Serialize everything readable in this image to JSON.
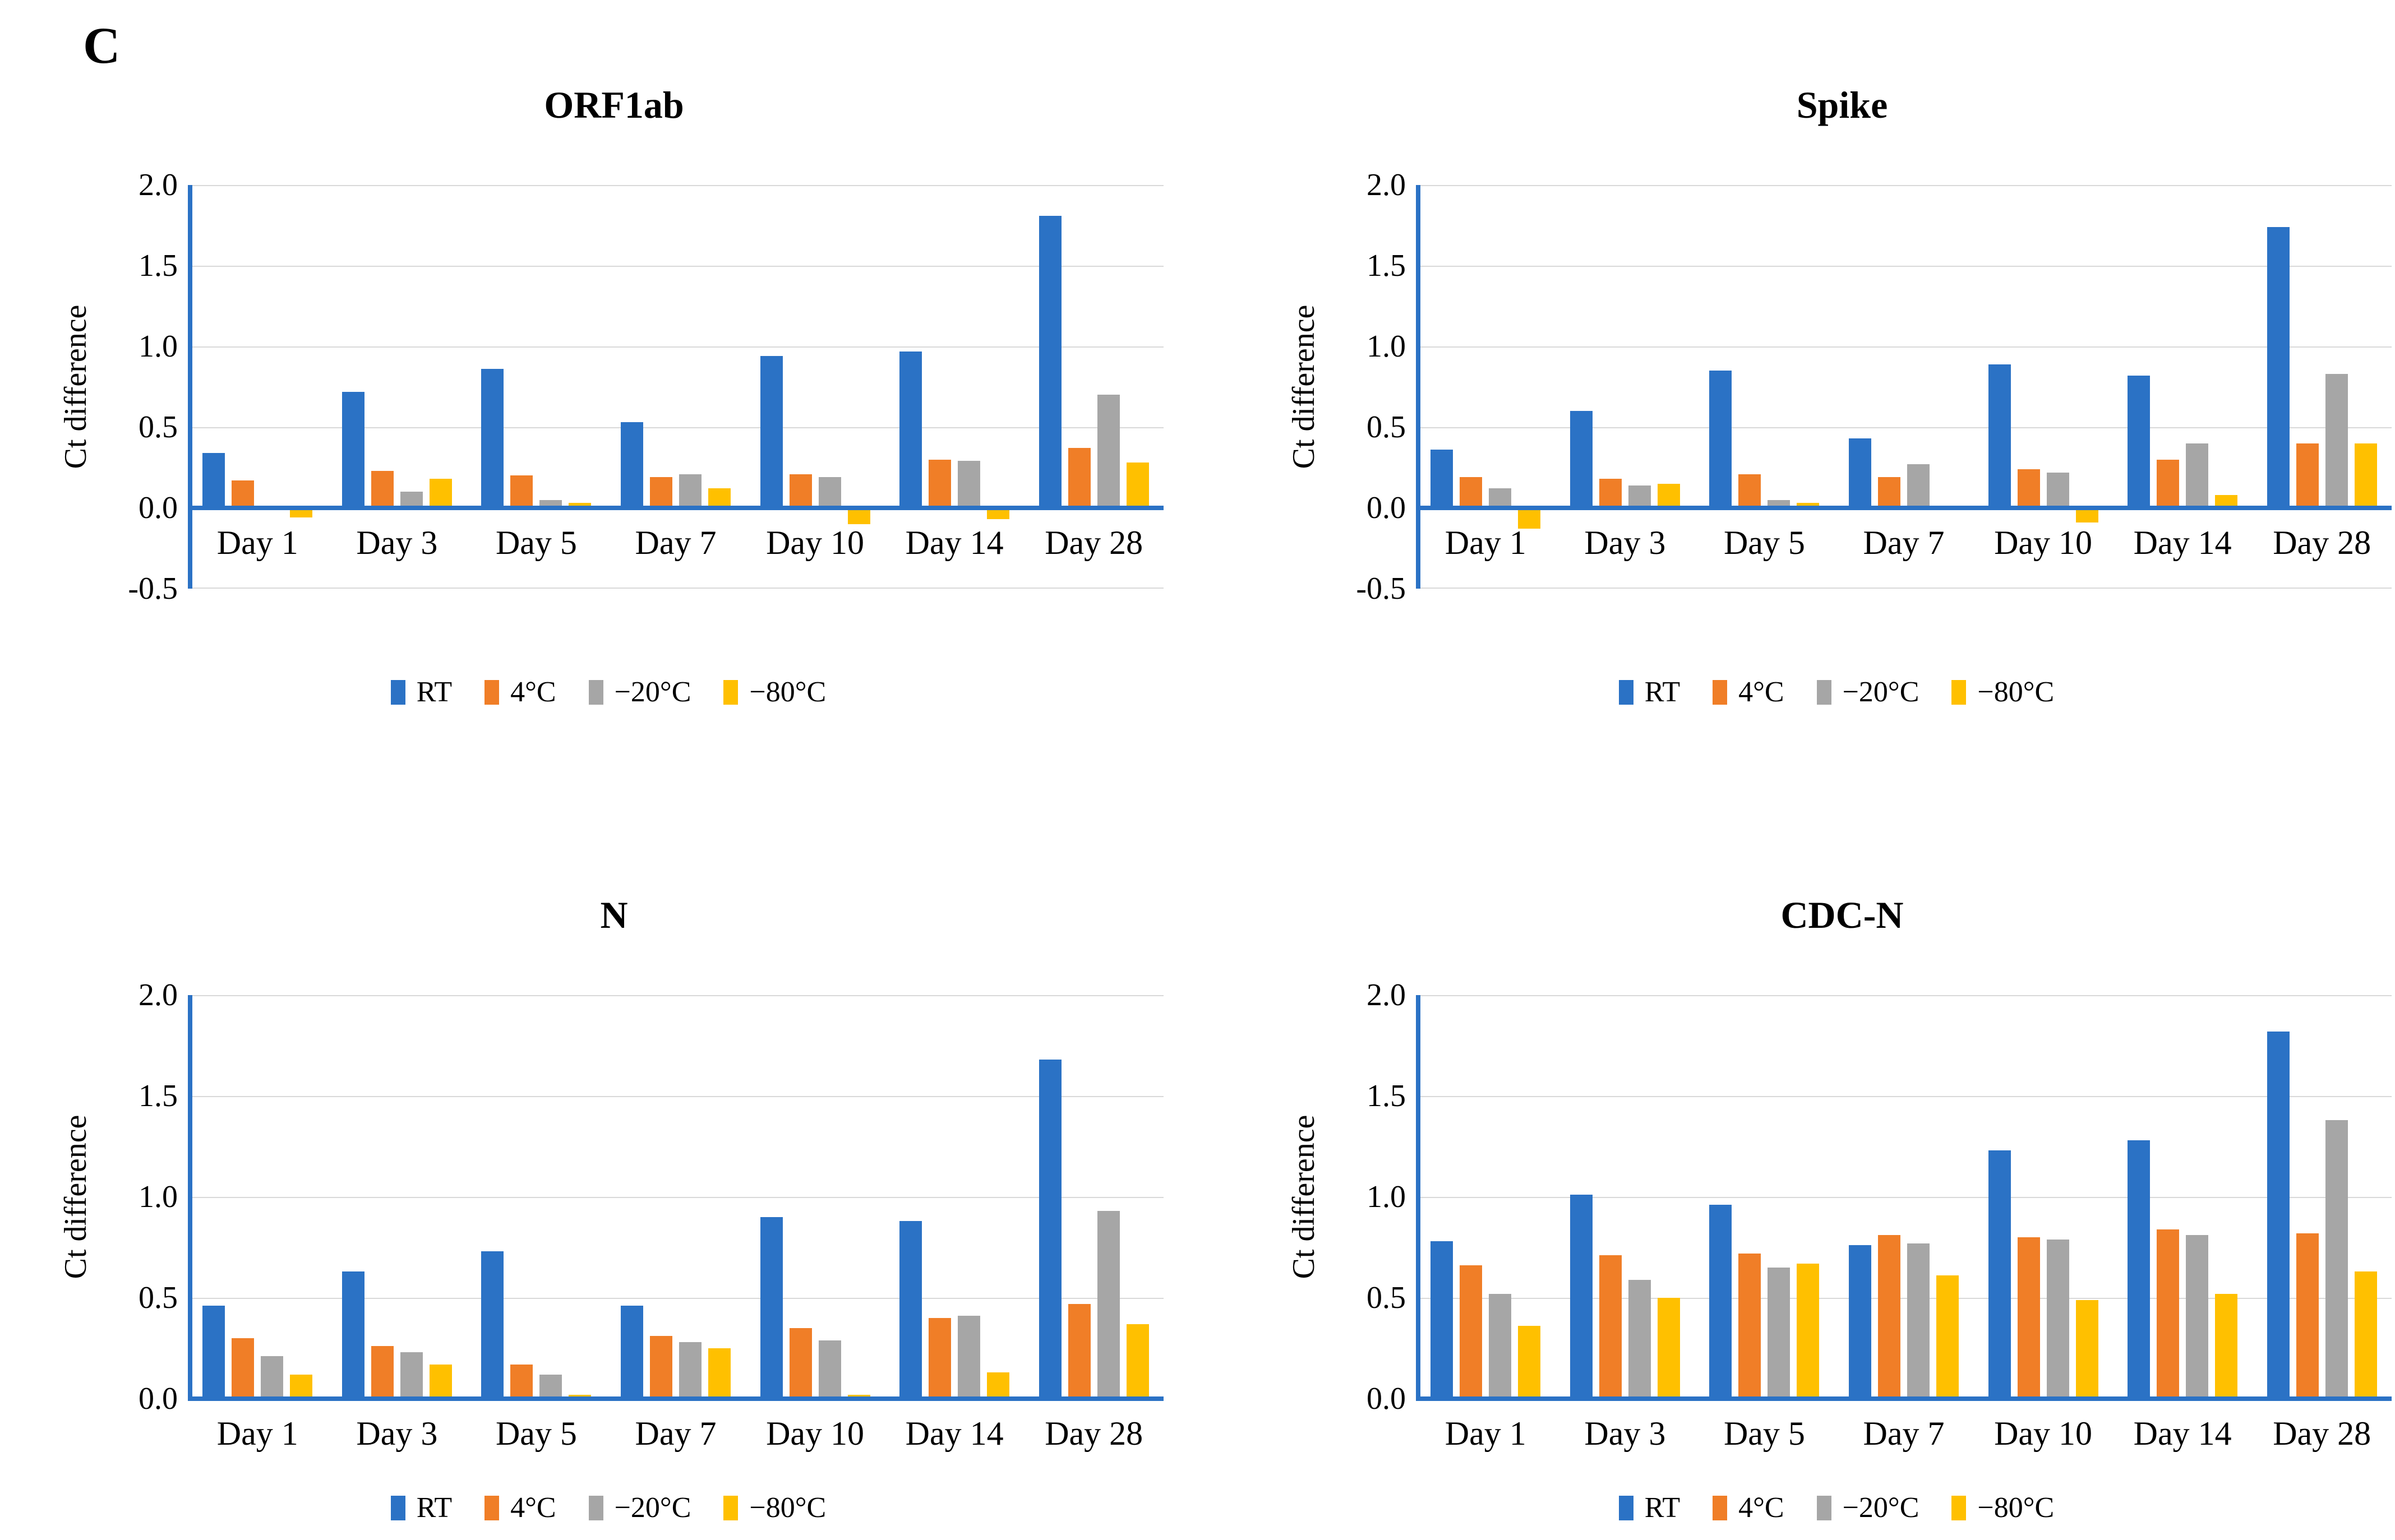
{
  "panel_label": "C",
  "colors": {
    "RT": "#2b72c5",
    "c4": "#f07e27",
    "m20": "#a6a6a6",
    "m80": "#ffc000",
    "axis": "#2b72c5",
    "gridline": "#d9d9d9"
  },
  "chart_data": [
    {
      "type": "bar",
      "title": "ORF1ab",
      "ylabel": "Ct difference",
      "ylim": [
        -0.5,
        2.0
      ],
      "ytick_step": 0.5,
      "grid": true,
      "legend_position": "bottom",
      "categories": [
        "Day 1",
        "Day 3",
        "Day 5",
        "Day 7",
        "Day 10",
        "Day 14",
        "Day 28"
      ],
      "series": [
        {
          "name": "RT",
          "color_key": "RT",
          "values": [
            0.34,
            0.72,
            0.86,
            0.53,
            0.94,
            0.97,
            1.81
          ]
        },
        {
          "name": "4°C",
          "color_key": "c4",
          "values": [
            0.17,
            0.23,
            0.2,
            0.19,
            0.21,
            0.3,
            0.37
          ]
        },
        {
          "name": "−20°C",
          "color_key": "m20",
          "values": [
            0.0,
            0.1,
            0.05,
            0.21,
            0.19,
            0.29,
            0.7
          ]
        },
        {
          "name": "−80°C",
          "color_key": "m80",
          "values": [
            -0.06,
            0.18,
            0.03,
            0.12,
            -0.1,
            -0.07,
            0.28
          ]
        }
      ]
    },
    {
      "type": "bar",
      "title": "Spike",
      "ylabel": "Ct difference",
      "ylim": [
        -0.5,
        2.0
      ],
      "ytick_step": 0.5,
      "grid": true,
      "legend_position": "bottom",
      "categories": [
        "Day 1",
        "Day 3",
        "Day 5",
        "Day 7",
        "Day 10",
        "Day 14",
        "Day 28"
      ],
      "series": [
        {
          "name": "RT",
          "color_key": "RT",
          "values": [
            0.36,
            0.6,
            0.85,
            0.43,
            0.89,
            0.82,
            1.74
          ]
        },
        {
          "name": "4°C",
          "color_key": "c4",
          "values": [
            0.19,
            0.18,
            0.21,
            0.19,
            0.24,
            0.3,
            0.4
          ]
        },
        {
          "name": "−20°C",
          "color_key": "m20",
          "values": [
            0.12,
            0.14,
            0.05,
            0.27,
            0.22,
            0.4,
            0.83
          ]
        },
        {
          "name": "−80°C",
          "color_key": "m80",
          "values": [
            -0.13,
            0.15,
            0.03,
            0.0,
            -0.09,
            0.08,
            0.4
          ]
        }
      ]
    },
    {
      "type": "bar",
      "title": "N",
      "ylabel": "Ct difference",
      "ylim": [
        0.0,
        2.0
      ],
      "ytick_step": 0.5,
      "grid": true,
      "legend_position": "bottom",
      "categories": [
        "Day 1",
        "Day 3",
        "Day 5",
        "Day 7",
        "Day 10",
        "Day 14",
        "Day 28"
      ],
      "series": [
        {
          "name": "RT",
          "color_key": "RT",
          "values": [
            0.46,
            0.63,
            0.73,
            0.46,
            0.9,
            0.88,
            1.68
          ]
        },
        {
          "name": "4°C",
          "color_key": "c4",
          "values": [
            0.3,
            0.26,
            0.17,
            0.31,
            0.35,
            0.4,
            0.47
          ]
        },
        {
          "name": "−20°C",
          "color_key": "m20",
          "values": [
            0.21,
            0.23,
            0.12,
            0.28,
            0.29,
            0.41,
            0.93
          ]
        },
        {
          "name": "−80°C",
          "color_key": "m80",
          "values": [
            0.12,
            0.17,
            0.02,
            0.25,
            0.02,
            0.13,
            0.37
          ]
        }
      ]
    },
    {
      "type": "bar",
      "title": "CDC-N",
      "ylabel": "Ct difference",
      "ylim": [
        0.0,
        2.0
      ],
      "ytick_step": 0.5,
      "grid": true,
      "legend_position": "bottom",
      "categories": [
        "Day 1",
        "Day 3",
        "Day 5",
        "Day 7",
        "Day 10",
        "Day 14",
        "Day 28"
      ],
      "series": [
        {
          "name": "RT",
          "color_key": "RT",
          "values": [
            0.78,
            1.01,
            0.96,
            0.76,
            1.23,
            1.28,
            1.82
          ]
        },
        {
          "name": "4°C",
          "color_key": "c4",
          "values": [
            0.66,
            0.71,
            0.72,
            0.81,
            0.8,
            0.84,
            0.82
          ]
        },
        {
          "name": "−20°C",
          "color_key": "m20",
          "values": [
            0.52,
            0.59,
            0.65,
            0.77,
            0.79,
            0.81,
            1.38
          ]
        },
        {
          "name": "−80°C",
          "color_key": "m80",
          "values": [
            0.36,
            0.5,
            0.67,
            0.61,
            0.49,
            0.52,
            0.63
          ]
        }
      ]
    }
  ]
}
